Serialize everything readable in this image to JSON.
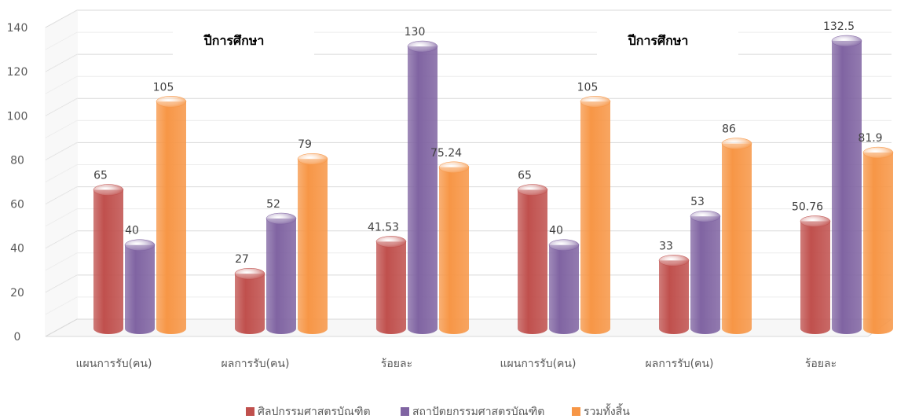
{
  "chart_data": {
    "type": "bar",
    "categories": [
      "แผนการรับ(คน)",
      "ผลการรับ(คน)",
      "ร้อยละ",
      "แผนการรับ(คน)",
      "ผลการรับ(คน)",
      "ร้อยละ"
    ],
    "group_labels": [
      "ปีการศึกษา",
      "ปีการศึกษา"
    ],
    "series": [
      {
        "name": "ศิลปกรรมศาสตรบัณฑิต",
        "color": "#c0504d",
        "values": [
          65,
          27,
          41.53,
          65,
          33,
          50.76
        ],
        "labels": [
          "65",
          "27",
          "41.53",
          "65",
          "33",
          "50.76"
        ]
      },
      {
        "name": "สถาปัตยกรรมศาสตรบัณฑิต",
        "color": "#8064a2",
        "values": [
          40,
          52,
          130,
          40,
          53,
          132.5
        ],
        "labels": [
          "40",
          "52",
          "130",
          "40",
          "53",
          "132.5"
        ]
      },
      {
        "name": "รวมทั้งสิ้น",
        "color": "#f79646",
        "values": [
          105,
          79,
          75.24,
          105,
          86,
          81.9
        ],
        "labels": [
          "105",
          "79",
          "75.24",
          "105",
          "86",
          "81.9"
        ]
      }
    ],
    "yticks": [
      "0",
      "20",
      "40",
      "60",
      "80",
      "100",
      "120",
      "140"
    ],
    "ylim": [
      0,
      140
    ],
    "grid": true,
    "legend_position": "bottom",
    "bar_style": "3d-cylinder"
  }
}
